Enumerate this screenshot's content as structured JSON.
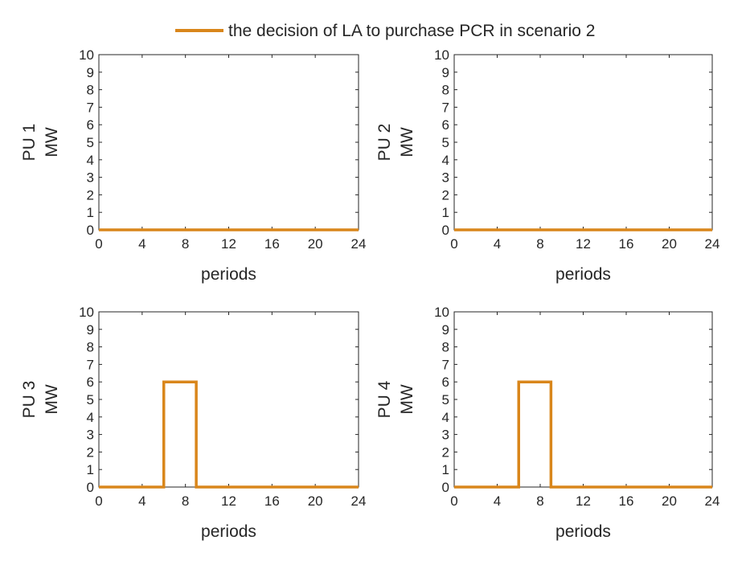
{
  "legend": {
    "label": "the decision of LA to purchase PCR in scenario 2",
    "placement": "top-center",
    "color": "#D9861B"
  },
  "chart_data": [
    {
      "type": "line",
      "subplot": "PU 1",
      "ylabel_line1": "PU 1",
      "ylabel_line2": "MW",
      "xlabel": "periods",
      "xlim": [
        0,
        24
      ],
      "ylim": [
        0,
        10
      ],
      "xticks": [
        0,
        4,
        8,
        12,
        16,
        20,
        24
      ],
      "yticks": [
        0,
        1,
        2,
        3,
        4,
        5,
        6,
        7,
        8,
        9,
        10
      ],
      "step": "post",
      "grid": false,
      "series": [
        {
          "name": "the decision of LA to purchase PCR in scenario 2",
          "color": "#D9861B",
          "x": [
            0,
            1,
            2,
            3,
            4,
            5,
            6,
            7,
            8,
            9,
            10,
            11,
            12,
            13,
            14,
            15,
            16,
            17,
            18,
            19,
            20,
            21,
            22,
            23,
            24
          ],
          "y": [
            0,
            0,
            0,
            0,
            0,
            0,
            0,
            0,
            0,
            0,
            0,
            0,
            0,
            0,
            0,
            0,
            0,
            0,
            0,
            0,
            0,
            0,
            0,
            0,
            0
          ]
        }
      ]
    },
    {
      "type": "line",
      "subplot": "PU 2",
      "ylabel_line1": "PU 2",
      "ylabel_line2": "MW",
      "xlabel": "periods",
      "xlim": [
        0,
        24
      ],
      "ylim": [
        0,
        10
      ],
      "xticks": [
        0,
        4,
        8,
        12,
        16,
        20,
        24
      ],
      "yticks": [
        0,
        1,
        2,
        3,
        4,
        5,
        6,
        7,
        8,
        9,
        10
      ],
      "step": "post",
      "grid": false,
      "series": [
        {
          "name": "the decision of LA to purchase PCR in scenario 2",
          "color": "#D9861B",
          "x": [
            0,
            1,
            2,
            3,
            4,
            5,
            6,
            7,
            8,
            9,
            10,
            11,
            12,
            13,
            14,
            15,
            16,
            17,
            18,
            19,
            20,
            21,
            22,
            23,
            24
          ],
          "y": [
            0,
            0,
            0,
            0,
            0,
            0,
            0,
            0,
            0,
            0,
            0,
            0,
            0,
            0,
            0,
            0,
            0,
            0,
            0,
            0,
            0,
            0,
            0,
            0,
            0
          ]
        }
      ]
    },
    {
      "type": "line",
      "subplot": "PU 3",
      "ylabel_line1": "PU 3",
      "ylabel_line2": "MW",
      "xlabel": "periods",
      "xlim": [
        0,
        24
      ],
      "ylim": [
        0,
        10
      ],
      "xticks": [
        0,
        4,
        8,
        12,
        16,
        20,
        24
      ],
      "yticks": [
        0,
        1,
        2,
        3,
        4,
        5,
        6,
        7,
        8,
        9,
        10
      ],
      "step": "post",
      "grid": false,
      "series": [
        {
          "name": "the decision of LA to purchase PCR in scenario 2",
          "color": "#D9861B",
          "x": [
            0,
            1,
            2,
            3,
            4,
            5,
            6,
            7,
            8,
            9,
            10,
            11,
            12,
            13,
            14,
            15,
            16,
            17,
            18,
            19,
            20,
            21,
            22,
            23,
            24
          ],
          "y": [
            0,
            0,
            0,
            0,
            0,
            0,
            6,
            6,
            6,
            0,
            0,
            0,
            0,
            0,
            0,
            0,
            0,
            0,
            0,
            0,
            0,
            0,
            0,
            0,
            0
          ]
        }
      ]
    },
    {
      "type": "line",
      "subplot": "PU 4",
      "ylabel_line1": "PU 4",
      "ylabel_line2": "MW",
      "xlabel": "periods",
      "xlim": [
        0,
        24
      ],
      "ylim": [
        0,
        10
      ],
      "xticks": [
        0,
        4,
        8,
        12,
        16,
        20,
        24
      ],
      "yticks": [
        0,
        1,
        2,
        3,
        4,
        5,
        6,
        7,
        8,
        9,
        10
      ],
      "step": "post",
      "grid": false,
      "series": [
        {
          "name": "the decision of LA to purchase PCR in scenario 2",
          "color": "#D9861B",
          "x": [
            0,
            1,
            2,
            3,
            4,
            5,
            6,
            7,
            8,
            9,
            10,
            11,
            12,
            13,
            14,
            15,
            16,
            17,
            18,
            19,
            20,
            21,
            22,
            23,
            24
          ],
          "y": [
            0,
            0,
            0,
            0,
            0,
            0,
            6,
            6,
            6,
            0,
            0,
            0,
            0,
            0,
            0,
            0,
            0,
            0,
            0,
            0,
            0,
            0,
            0,
            0,
            0
          ]
        }
      ]
    }
  ]
}
